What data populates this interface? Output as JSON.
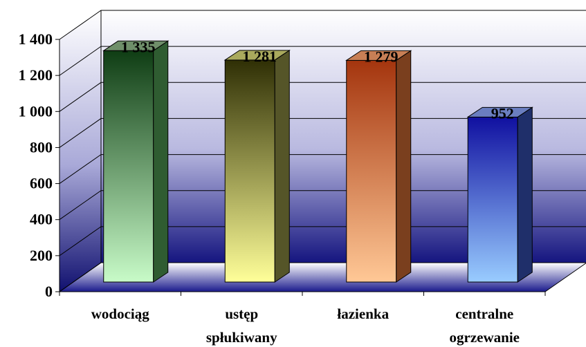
{
  "chart_data": {
    "type": "bar",
    "categories": [
      [
        "wodociąg"
      ],
      [
        "ustęp",
        "spłukiwany"
      ],
      [
        "łazienka"
      ],
      [
        "centralne",
        "ogrzewanie"
      ]
    ],
    "values": [
      1335,
      1281,
      1279,
      952
    ],
    "data_labels": [
      "1 335",
      "1 281",
      "1 279",
      "952"
    ],
    "yticks": [
      {
        "value": 0,
        "label": "0"
      },
      {
        "value": 200,
        "label": "200"
      },
      {
        "value": 400,
        "label": "400"
      },
      {
        "value": 600,
        "label": "600"
      },
      {
        "value": 800,
        "label": "800"
      },
      {
        "value": 1000,
        "label": "1 000"
      },
      {
        "value": 1200,
        "label": "1 200"
      },
      {
        "value": 1400,
        "label": "1 400"
      }
    ],
    "ylim": [
      0,
      1400
    ],
    "grid": true,
    "three_d": true,
    "legend": "none",
    "bar_colors": [
      {
        "top": "#0f3d14",
        "bottom": "#c8fbc8",
        "side": "#2f5c31",
        "cap": "#6f8f6a"
      },
      {
        "top": "#2f2f05",
        "bottom": "#ffff99",
        "side": "#555528",
        "cap": "#a9a95d"
      },
      {
        "top": "#a4350e",
        "bottom": "#ffc896",
        "side": "#7a3f1e",
        "cap": "#c87f55"
      },
      {
        "top": "#1010a0",
        "bottom": "#99ccff",
        "side": "#1f2f6a",
        "cap": "#6a7ec0"
      }
    ]
  }
}
